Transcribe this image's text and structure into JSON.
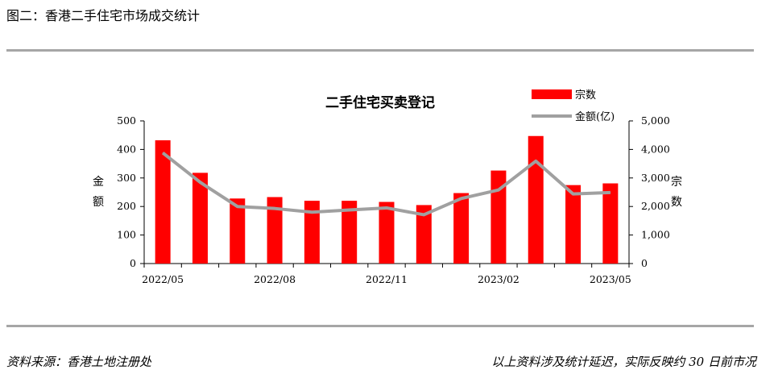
{
  "figure_caption": "图二：香港二手住宅市场成交统计",
  "source": "资料来源：香港土地注册处",
  "note": "以上资料涉及统计延迟，实际反映约 30 日前市况",
  "colors": {
    "bar": "#ff0000",
    "line": "#a0a0a0",
    "rule": "#a6a6a6"
  },
  "chart_data": {
    "type": "bar+line",
    "title": "二手住宅买卖登记",
    "left_axis_label": [
      "金",
      "额"
    ],
    "right_axis_label": [
      "宗",
      "数"
    ],
    "left_ylim": [
      0,
      500
    ],
    "left_ticks": [
      "0",
      "100",
      "200",
      "300",
      "400",
      "500"
    ],
    "right_ylim": [
      0,
      5000
    ],
    "right_ticks": [
      "0",
      "1,000",
      "2,000",
      "3,000",
      "4,000",
      "5,000"
    ],
    "x_tick_labels": [
      "2022/05",
      "2022/08",
      "2022/11",
      "2023/02",
      "2023/05"
    ],
    "categories": [
      "2022/05",
      "2022/06",
      "2022/07",
      "2022/08",
      "2022/09",
      "2022/10",
      "2022/11",
      "2022/12",
      "2023/01",
      "2023/02",
      "2023/03",
      "2023/04",
      "2023/05"
    ],
    "legend_position": "top-right",
    "grid": false,
    "series": [
      {
        "name": "宗数",
        "type": "bar",
        "axis": "left",
        "values": [
          432,
          318,
          228,
          233,
          220,
          220,
          216,
          205,
          247,
          326,
          447,
          275,
          281
        ]
      },
      {
        "name": "金额(亿)",
        "type": "line",
        "axis": "right",
        "values": [
          3880,
          2850,
          2000,
          1930,
          1800,
          1880,
          1950,
          1710,
          2280,
          2580,
          3590,
          2440,
          2490
        ]
      }
    ]
  }
}
